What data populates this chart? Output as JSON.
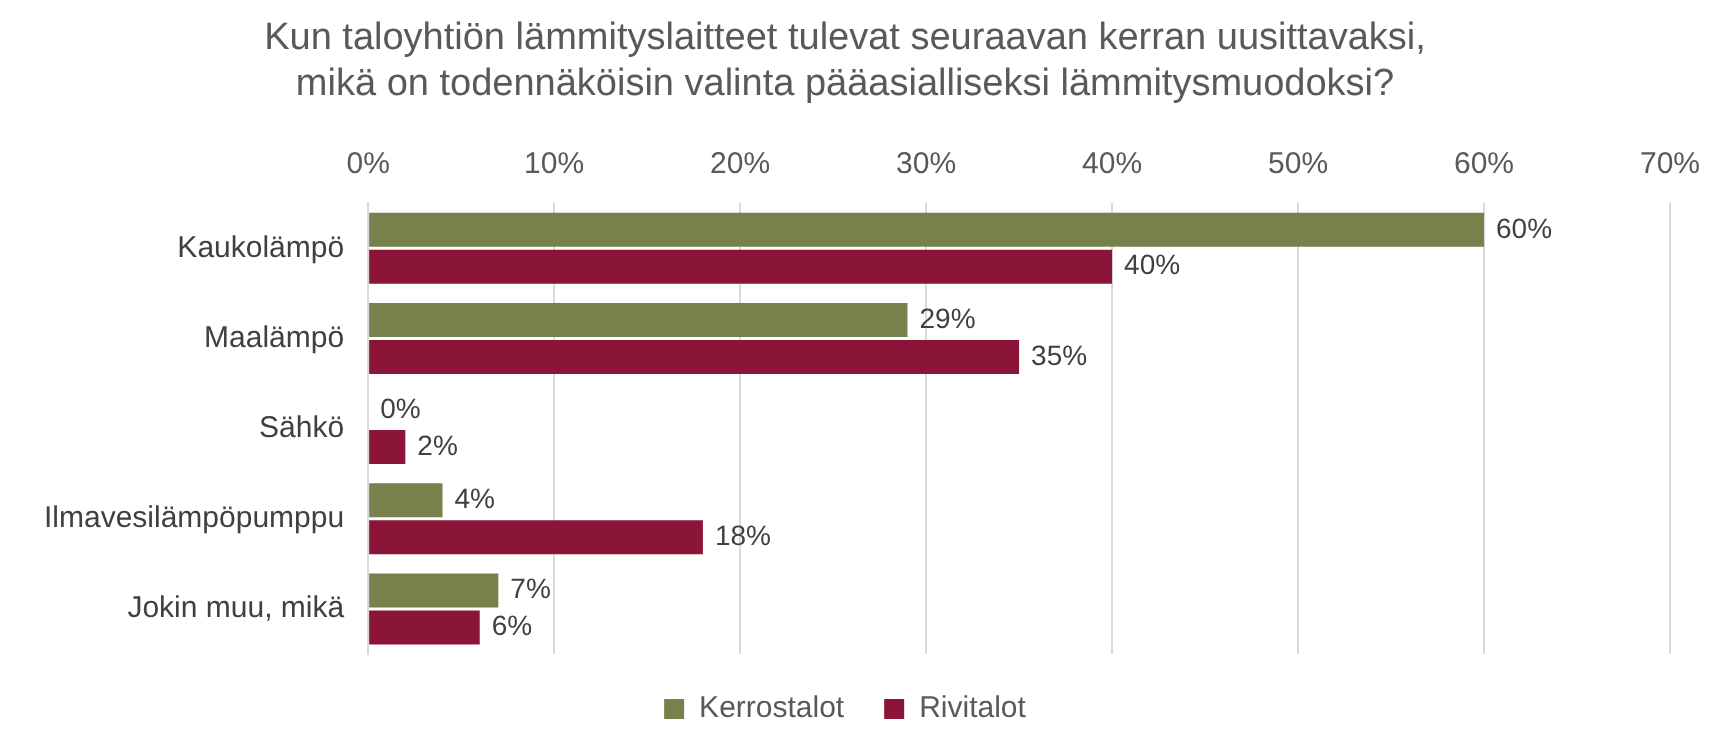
{
  "chart_data": {
    "type": "bar",
    "orientation": "horizontal",
    "title": "Kun taloyhtiön lämmityslaitteet tulevat seuraavan kerran uusittavaksi,\nmikä on todennäköisin valinta pääasialliseksi lämmitysmuodoksi?",
    "categories": [
      "Kaukolämpö",
      "Maalämpö",
      "Sähkö",
      "Ilmavesilämpöpumppu",
      "Jokin muu, mikä"
    ],
    "series": [
      {
        "name": "Kerrostalot",
        "color": "#76814b",
        "values": [
          60,
          29,
          0,
          4,
          7
        ],
        "value_labels": [
          "60%",
          "29%",
          "0%",
          "4%",
          "7%"
        ]
      },
      {
        "name": "Rivitalot",
        "color": "#8b1538",
        "values": [
          40,
          35,
          2,
          18,
          6
        ],
        "value_labels": [
          "40%",
          "35%",
          "2%",
          "18%",
          "6%"
        ]
      }
    ],
    "xlim": [
      0,
      70
    ],
    "xticks": [
      {
        "value": 0,
        "label": "0%"
      },
      {
        "value": 10,
        "label": "10%"
      },
      {
        "value": 20,
        "label": "20%"
      },
      {
        "value": 30,
        "label": "30%"
      },
      {
        "value": 40,
        "label": "40%"
      },
      {
        "value": 50,
        "label": "50%"
      },
      {
        "value": 60,
        "label": "60%"
      },
      {
        "value": 70,
        "label": "70%"
      }
    ],
    "grid": "x",
    "legend": "bottom"
  }
}
